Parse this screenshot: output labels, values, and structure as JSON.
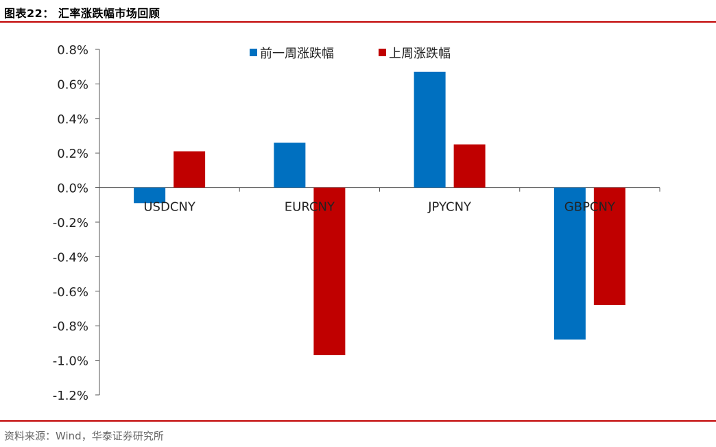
{
  "header": {
    "title": "图表22： 汇率涨跌幅市场回顾"
  },
  "source": "资料来源：Wind，华泰证券研究所",
  "colors": {
    "accent_red": "#c00000",
    "series1": "#0070c0",
    "series2": "#c00000",
    "axis": "#555555"
  },
  "chart_data": {
    "type": "bar",
    "title": "",
    "xlabel": "",
    "ylabel": "",
    "categories": [
      "USDCNY",
      "EURCNY",
      "JPYCNY",
      "GBPCNY"
    ],
    "series": [
      {
        "name": "前一周涨跌幅",
        "values": [
          -0.09,
          0.26,
          0.67,
          -0.88
        ]
      },
      {
        "name": "上周涨跌幅",
        "values": [
          0.21,
          -0.97,
          0.25,
          -0.68
        ]
      }
    ],
    "ylim": [
      -1.2,
      0.8
    ],
    "yticks": [
      0.8,
      0.6,
      0.4,
      0.2,
      0.0,
      -0.2,
      -0.4,
      -0.6,
      -0.8,
      -1.0,
      -1.2
    ],
    "ytick_labels": [
      "0.8%",
      "0.6%",
      "0.4%",
      "0.2%",
      "0.0%",
      "-0.2%",
      "-0.4%",
      "-0.6%",
      "-0.8%",
      "-1.0%",
      "-1.2%"
    ],
    "legend_position": "top-center",
    "grid": false
  }
}
